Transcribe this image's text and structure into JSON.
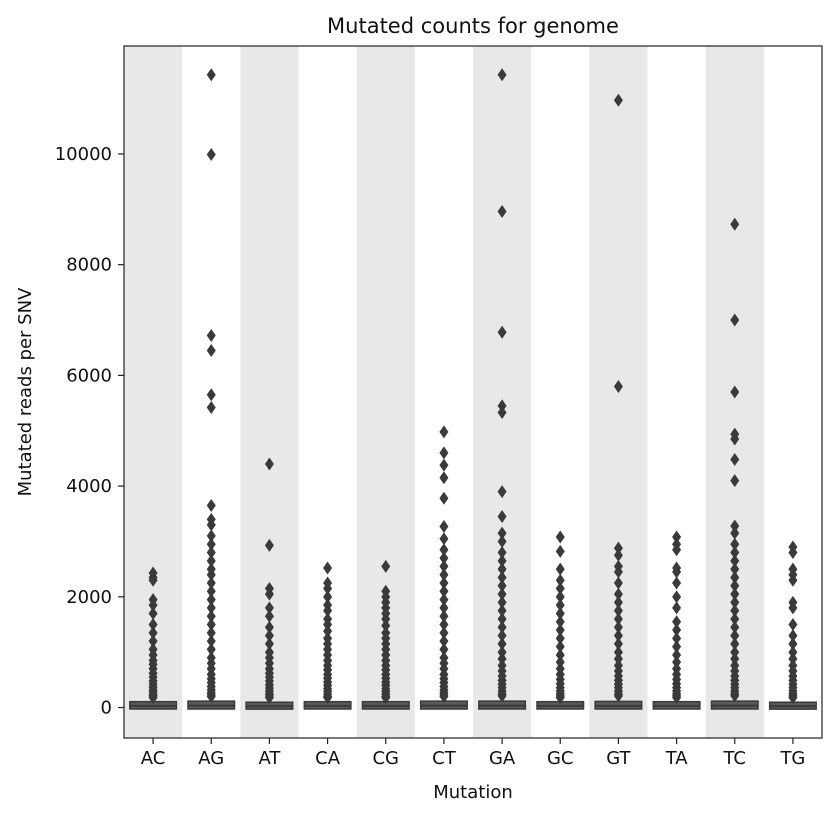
{
  "chart_data": {
    "type": "box",
    "title": "Mutated counts for genome",
    "xlabel": "Mutation",
    "ylabel": "Mutated reads per SNV",
    "categories": [
      "AC",
      "AG",
      "AT",
      "CA",
      "CG",
      "CT",
      "GA",
      "GC",
      "GT",
      "TA",
      "TC",
      "TG"
    ],
    "ylim": [
      -550,
      11950
    ],
    "yticks": [
      0,
      2000,
      4000,
      6000,
      8000,
      10000
    ],
    "grid": false,
    "alternating_band_color": "#e8e8e8",
    "box_color": "#3a3a3a",
    "boxes": [
      {
        "q1": 10,
        "median": 30,
        "q3": 70,
        "whisker_max": 160,
        "outliers": [
          2430,
          2350,
          2300,
          1950,
          1850,
          1700,
          1500,
          1350,
          1200,
          1050,
          950,
          850,
          780,
          700,
          620,
          550,
          480,
          420,
          370,
          320,
          280,
          240,
          210,
          180
        ]
      },
      {
        "q1": 10,
        "median": 35,
        "q3": 80,
        "whisker_max": 180,
        "outliers": [
          11430,
          9990,
          6720,
          6450,
          5650,
          5420,
          3650,
          3400,
          3300,
          3100,
          2950,
          2800,
          2650,
          2500,
          2400,
          2250,
          2100,
          1950,
          1800,
          1650,
          1500,
          1350,
          1200,
          1050,
          900,
          800,
          700,
          600,
          520,
          450,
          380,
          320,
          270,
          230,
          200
        ]
      },
      {
        "q1": 8,
        "median": 25,
        "q3": 60,
        "whisker_max": 140,
        "outliers": [
          4400,
          2930,
          2150,
          2050,
          1800,
          1650,
          1450,
          1300,
          1150,
          1000,
          900,
          800,
          700,
          620,
          550,
          480,
          410,
          350,
          300,
          250,
          210,
          180
        ]
      },
      {
        "q1": 10,
        "median": 30,
        "q3": 70,
        "whisker_max": 160,
        "outliers": [
          2520,
          2250,
          2150,
          2000,
          1850,
          1750,
          1600,
          1500,
          1380,
          1250,
          1150,
          1050,
          950,
          850,
          760,
          680,
          600,
          530,
          460,
          400,
          340,
          290,
          240,
          200,
          180
        ]
      },
      {
        "q1": 10,
        "median": 30,
        "q3": 70,
        "whisker_max": 160,
        "outliers": [
          2550,
          2100,
          2000,
          1900,
          1800,
          1700,
          1600,
          1480,
          1350,
          1250,
          1150,
          1050,
          950,
          850,
          760,
          680,
          600,
          530,
          460,
          400,
          340,
          290,
          240,
          200,
          180
        ]
      },
      {
        "q1": 10,
        "median": 35,
        "q3": 80,
        "whisker_max": 180,
        "outliers": [
          4980,
          4600,
          4380,
          4150,
          3780,
          3270,
          3050,
          2850,
          2700,
          2550,
          2400,
          2250,
          2100,
          1950,
          1800,
          1650,
          1500,
          1350,
          1200,
          1050,
          900,
          800,
          700,
          600,
          520,
          450,
          380,
          320,
          270,
          230,
          200
        ]
      },
      {
        "q1": 10,
        "median": 35,
        "q3": 80,
        "whisker_max": 180,
        "outliers": [
          11430,
          8960,
          6780,
          5450,
          5330,
          3900,
          3450,
          3150,
          3000,
          2800,
          2650,
          2500,
          2350,
          2200,
          2050,
          1900,
          1750,
          1600,
          1450,
          1300,
          1150,
          1000,
          880,
          760,
          660,
          570,
          490,
          420,
          360,
          300,
          250,
          210
        ]
      },
      {
        "q1": 10,
        "median": 30,
        "q3": 70,
        "whisker_max": 160,
        "outliers": [
          3080,
          2820,
          2500,
          2300,
          2150,
          2000,
          1850,
          1700,
          1550,
          1400,
          1250,
          1100,
          950,
          820,
          700,
          600,
          510,
          430,
          360,
          300,
          250,
          210,
          180
        ]
      },
      {
        "q1": 10,
        "median": 30,
        "q3": 75,
        "whisker_max": 170,
        "outliers": [
          10970,
          5800,
          2880,
          2750,
          2550,
          2450,
          2250,
          2050,
          1900,
          1750,
          1600,
          1450,
          1300,
          1150,
          1000,
          880,
          760,
          660,
          570,
          490,
          420,
          360,
          300,
          250,
          210
        ]
      },
      {
        "q1": 10,
        "median": 30,
        "q3": 70,
        "whisker_max": 160,
        "outliers": [
          3080,
          2950,
          2850,
          2520,
          2450,
          2250,
          2000,
          1800,
          1550,
          1400,
          1250,
          1100,
          950,
          820,
          700,
          600,
          510,
          430,
          360,
          300,
          250,
          210,
          180
        ]
      },
      {
        "q1": 10,
        "median": 35,
        "q3": 80,
        "whisker_max": 180,
        "outliers": [
          8730,
          7000,
          5700,
          4940,
          4850,
          4480,
          4100,
          3280,
          3150,
          2950,
          2800,
          2650,
          2500,
          2350,
          2200,
          2050,
          1900,
          1750,
          1600,
          1450,
          1300,
          1150,
          1000,
          880,
          760,
          660,
          570,
          490,
          420,
          360,
          300,
          250,
          210
        ]
      },
      {
        "q1": 8,
        "median": 25,
        "q3": 60,
        "whisker_max": 140,
        "outliers": [
          2900,
          2800,
          2500,
          2400,
          2300,
          1900,
          1800,
          1500,
          1300,
          1150,
          1000,
          880,
          760,
          660,
          570,
          490,
          420,
          360,
          300,
          250,
          210,
          180
        ]
      }
    ]
  }
}
